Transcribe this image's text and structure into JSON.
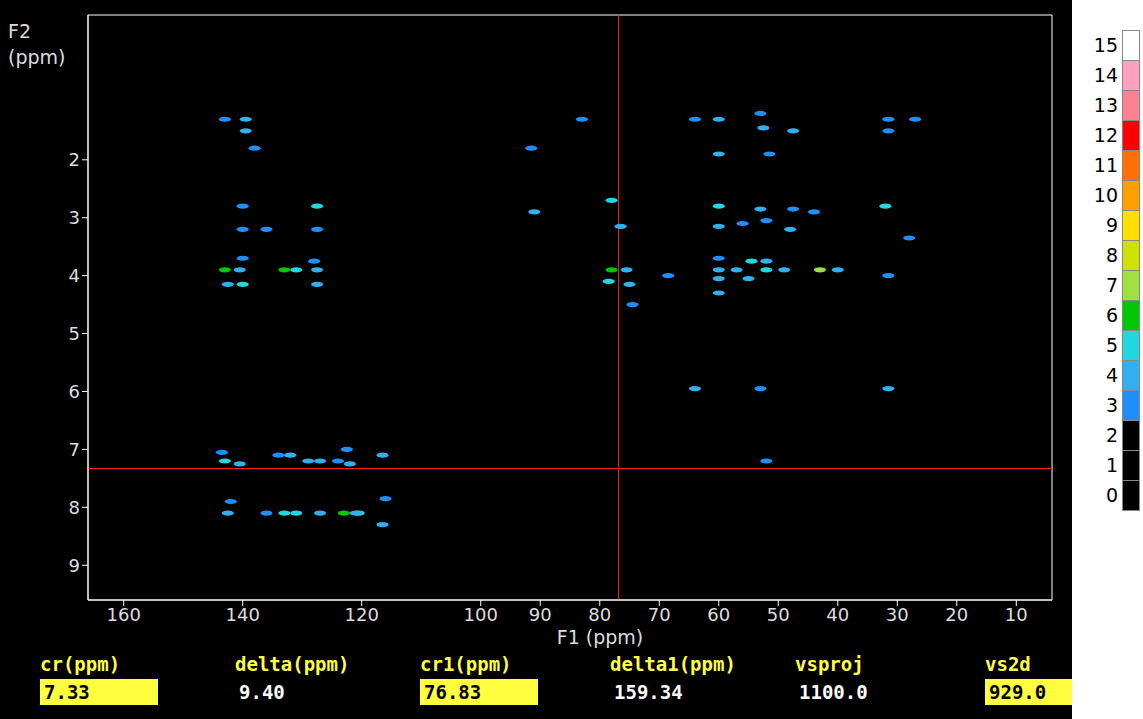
{
  "chart_data": {
    "type": "scatter",
    "x_label": "F1 (ppm)",
    "y_label": "F2 (ppm)",
    "xlim": [
      166,
      4
    ],
    "xticks": [
      160,
      140,
      120,
      100,
      90,
      80,
      70,
      60,
      50,
      40,
      30,
      20,
      10
    ],
    "ylim": [
      9.6,
      -0.5
    ],
    "yticks": [
      2,
      3,
      4,
      5,
      6,
      7,
      8,
      9
    ],
    "grid": false,
    "x": [
      143,
      139.5,
      139.5,
      138,
      83,
      64,
      60,
      53,
      52.5,
      47.5,
      31.5,
      31.5,
      27,
      91.5,
      60,
      51.5,
      140,
      127.5,
      91,
      78,
      60,
      53,
      47.5,
      44,
      32,
      28,
      140,
      136,
      127.5,
      76.5,
      60,
      56,
      48,
      52,
      140,
      128,
      60,
      54.5,
      52,
      143,
      140.5,
      133,
      131,
      127.5,
      78,
      75.5,
      68.5,
      60,
      57,
      52,
      49,
      43,
      40,
      31.5,
      142.5,
      140,
      127.5,
      78.5,
      75,
      60,
      55,
      60,
      74.5,
      64,
      53,
      31.5,
      143.5,
      143,
      140.5,
      134,
      132,
      129,
      127,
      124,
      122.5,
      122,
      116.5,
      52,
      142,
      142.5,
      136,
      133,
      131,
      127,
      123,
      120.5,
      116,
      116.5,
      121
    ],
    "y": [
      1.3,
      1.3,
      1.5,
      1.8,
      1.3,
      1.3,
      1.3,
      1.2,
      1.45,
      1.5,
      1.3,
      1.5,
      1.3,
      1.8,
      1.9,
      1.9,
      2.8,
      2.8,
      2.9,
      2.7,
      2.8,
      2.85,
      2.85,
      2.9,
      2.8,
      3.35,
      3.2,
      3.2,
      3.2,
      3.15,
      3.15,
      3.1,
      3.2,
      3.05,
      3.7,
      3.75,
      3.7,
      3.75,
      3.75,
      3.9,
      3.9,
      3.9,
      3.9,
      3.9,
      3.9,
      3.9,
      4.0,
      3.9,
      3.9,
      3.9,
      3.9,
      3.9,
      3.9,
      4.0,
      4.15,
      4.15,
      4.15,
      4.1,
      4.15,
      4.05,
      4.05,
      4.3,
      4.5,
      5.95,
      5.95,
      5.95,
      7.05,
      7.2,
      7.25,
      7.1,
      7.1,
      7.2,
      7.2,
      7.2,
      7.0,
      7.25,
      7.1,
      7.2,
      7.9,
      8.1,
      8.1,
      8.1,
      8.1,
      8.1,
      8.1,
      8.1,
      7.85,
      8.3,
      8.1
    ],
    "levels": [
      3,
      4,
      4,
      3,
      3,
      3,
      4,
      3,
      4,
      4,
      3,
      3,
      3,
      3,
      4,
      3,
      3,
      5,
      4,
      5,
      5,
      4,
      3,
      3,
      5,
      3,
      3,
      3,
      3,
      4,
      4,
      3,
      4,
      3,
      3,
      3,
      3,
      5,
      4,
      6,
      4,
      6,
      5,
      4,
      6,
      4,
      3,
      4,
      4,
      5,
      4,
      7,
      4,
      3,
      4,
      5,
      4,
      5,
      4,
      4,
      4,
      4,
      3,
      4,
      3,
      4,
      3,
      5,
      4,
      3,
      4,
      4,
      4,
      3,
      3,
      4,
      4,
      3,
      3,
      4,
      3,
      5,
      5,
      4,
      6,
      5,
      3,
      4,
      4
    ],
    "colorbar": {
      "range": [
        0,
        15
      ],
      "ticks": [
        0,
        1,
        2,
        3,
        4,
        5,
        6,
        7,
        8,
        9,
        10,
        11,
        12,
        13,
        14,
        15
      ],
      "colors": [
        "#000000",
        "#000000",
        "#000000",
        "#1f8fff",
        "#30b0f0",
        "#20d8e0",
        "#00c800",
        "#a0e040",
        "#d0e000",
        "#ffe000",
        "#ffa000",
        "#ff7000",
        "#ff0000",
        "#ff8090",
        "#ffa0c0",
        "#ffffff"
      ]
    },
    "parameters": [
      {
        "name": "cr(ppm)",
        "value": 7.33,
        "axis": "y",
        "color": "#ffff40"
      },
      {
        "name": "delta(ppm)",
        "value": 9.4,
        "label": "9.40"
      },
      {
        "name": "cr1(ppm)",
        "value": 76.83,
        "axis": "x",
        "color": "#ffff40"
      },
      {
        "name": "delta1(ppm)",
        "value": 159.34
      },
      {
        "name": "vsproj",
        "value": 1100,
        "label": "1100.0"
      },
      {
        "name": "vs2d",
        "value": 929,
        "label": "929.0",
        "color": "#ffff40"
      }
    ]
  }
}
